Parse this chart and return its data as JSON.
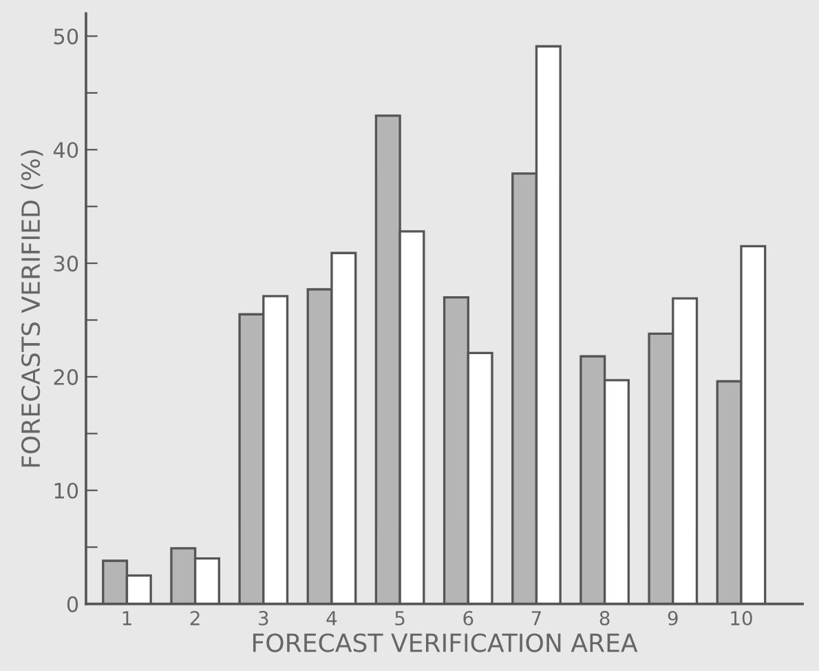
{
  "chart_data": {
    "type": "bar",
    "xlabel": "FORECAST VERIFICATION AREA",
    "ylabel": "FORECASTS VERIFIED (%)",
    "categories": [
      "1",
      "2",
      "3",
      "4",
      "5",
      "6",
      "7",
      "8",
      "9",
      "10"
    ],
    "series": [
      {
        "color": "#b5b5b5",
        "values": [
          3.8,
          4.9,
          25.5,
          27.7,
          43.0,
          27.0,
          37.9,
          21.8,
          23.8,
          19.6
        ]
      },
      {
        "color": "#ffffff",
        "values": [
          2.5,
          4.0,
          27.1,
          30.9,
          32.8,
          22.1,
          49.1,
          19.7,
          26.9,
          31.5
        ]
      }
    ],
    "ylim": [
      0,
      52
    ],
    "yticks": [
      0,
      {
        "value": 5,
        "label": null
      },
      10,
      {
        "value": 15,
        "label": null
      },
      20,
      {
        "value": 25,
        "label": null
      },
      30,
      {
        "value": 35,
        "label": null
      },
      40,
      {
        "value": 45,
        "label": null
      },
      50
    ],
    "grid": false,
    "legend": false
  }
}
